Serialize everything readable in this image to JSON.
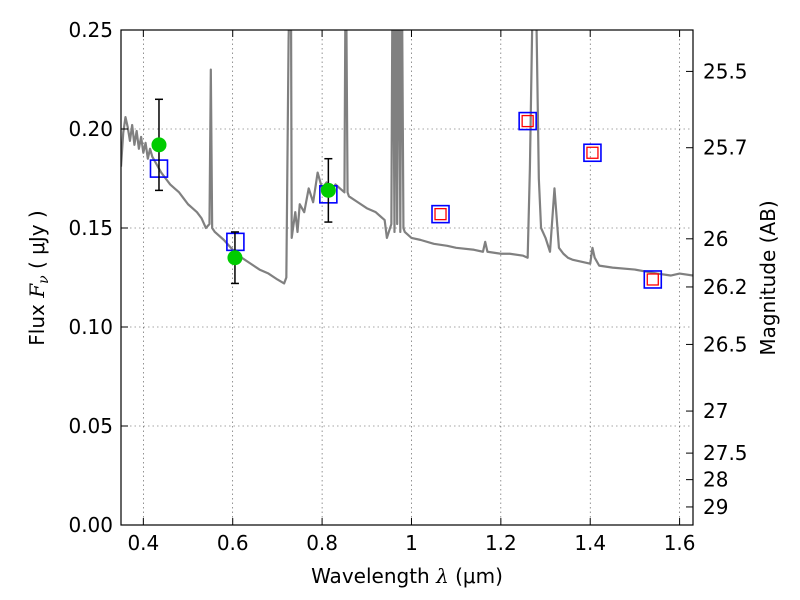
{
  "chart_data": {
    "type": "line",
    "xlabel": {
      "prefix": "Wavelength  ",
      "symbol": "λ",
      "unit": " (μm)"
    },
    "ylabel": {
      "prefix": "Flux  ",
      "symbol": "F",
      "sub": "ν",
      "unit": "  ( μJy )"
    },
    "y2label": "Magnitude (AB)",
    "xlim": [
      0.35,
      1.63
    ],
    "ylim": [
      0.0,
      0.25
    ],
    "xticks": [
      0.4,
      0.6,
      0.8,
      1.0,
      1.2,
      1.4,
      1.6
    ],
    "xtick_labels": [
      "0.4",
      "0.6",
      "0.8",
      "1",
      "1.2",
      "1.4",
      "1.6"
    ],
    "yticks": [
      0.0,
      0.05,
      0.1,
      0.15,
      0.2,
      0.25
    ],
    "ytick_labels": [
      "0.00",
      "0.05",
      "0.10",
      "0.15",
      "0.20",
      "0.25"
    ],
    "y2ticks": [
      {
        "mag": 25.5,
        "label": "25.5"
      },
      {
        "mag": 25.7,
        "label": "25.7"
      },
      {
        "mag": 26.0,
        "label": "26"
      },
      {
        "mag": 26.2,
        "label": "26.2"
      },
      {
        "mag": 26.5,
        "label": "26.5"
      },
      {
        "mag": 27.0,
        "label": "27"
      },
      {
        "mag": 27.5,
        "label": "27.5"
      },
      {
        "mag": 28.0,
        "label": "28"
      },
      {
        "mag": 29.0,
        "label": "29"
      }
    ],
    "grid": true,
    "colors": {
      "template": "#808080",
      "observed": "#00cc00",
      "model": "#0000ff",
      "model_inner": "#ff0000",
      "errorbar": "#000000"
    },
    "series": [
      {
        "name": "template spectrum",
        "kind": "line",
        "x": [
          0.35,
          0.355,
          0.36,
          0.365,
          0.37,
          0.375,
          0.38,
          0.385,
          0.39,
          0.395,
          0.4,
          0.405,
          0.41,
          0.415,
          0.42,
          0.43,
          0.44,
          0.45,
          0.46,
          0.47,
          0.48,
          0.49,
          0.5,
          0.51,
          0.52,
          0.53,
          0.54,
          0.548,
          0.551,
          0.554,
          0.56,
          0.58,
          0.6,
          0.62,
          0.64,
          0.66,
          0.68,
          0.7,
          0.715,
          0.72,
          0.725,
          0.73,
          0.732,
          0.735,
          0.74,
          0.745,
          0.75,
          0.76,
          0.77,
          0.78,
          0.79,
          0.8,
          0.81,
          0.82,
          0.83,
          0.84,
          0.85,
          0.853,
          0.857,
          0.86,
          0.88,
          0.9,
          0.92,
          0.94,
          0.945,
          0.955,
          0.958,
          0.962,
          0.965,
          0.968,
          0.972,
          0.975,
          0.978,
          0.982,
          0.985,
          0.99,
          1.0,
          1.02,
          1.05,
          1.08,
          1.1,
          1.14,
          1.16,
          1.165,
          1.17,
          1.2,
          1.22,
          1.25,
          1.26,
          1.265,
          1.27,
          1.275,
          1.28,
          1.285,
          1.29,
          1.3,
          1.31,
          1.32,
          1.33,
          1.34,
          1.35,
          1.36,
          1.38,
          1.4,
          1.405,
          1.41,
          1.42,
          1.45,
          1.5,
          1.55,
          1.58,
          1.6,
          1.63
        ],
        "y": [
          0.181,
          0.198,
          0.206,
          0.201,
          0.194,
          0.202,
          0.192,
          0.199,
          0.19,
          0.196,
          0.188,
          0.193,
          0.185,
          0.19,
          0.186,
          0.182,
          0.178,
          0.175,
          0.172,
          0.17,
          0.168,
          0.165,
          0.162,
          0.16,
          0.158,
          0.155,
          0.15,
          0.152,
          0.23,
          0.15,
          0.148,
          0.144,
          0.139,
          0.135,
          0.132,
          0.129,
          0.127,
          0.124,
          0.122,
          0.125,
          0.245,
          0.3,
          0.145,
          0.15,
          0.158,
          0.148,
          0.162,
          0.158,
          0.17,
          0.163,
          0.178,
          0.17,
          0.173,
          0.168,
          0.172,
          0.17,
          0.168,
          0.3,
          0.168,
          0.166,
          0.163,
          0.16,
          0.158,
          0.154,
          0.145,
          0.152,
          0.3,
          0.148,
          0.3,
          0.152,
          0.3,
          0.148,
          0.3,
          0.15,
          0.148,
          0.147,
          0.145,
          0.144,
          0.142,
          0.141,
          0.14,
          0.139,
          0.138,
          0.143,
          0.138,
          0.137,
          0.137,
          0.136,
          0.135,
          0.18,
          0.25,
          0.3,
          0.25,
          0.175,
          0.15,
          0.145,
          0.138,
          0.17,
          0.14,
          0.137,
          0.135,
          0.134,
          0.133,
          0.132,
          0.14,
          0.135,
          0.131,
          0.13,
          0.129,
          0.127,
          0.126,
          0.127,
          0.126
        ]
      },
      {
        "name": "observed photometry",
        "kind": "points-errorbar",
        "x": [
          0.435,
          0.605,
          0.814
        ],
        "y": [
          0.192,
          0.135,
          0.169
        ],
        "yerr": [
          0.023,
          0.013,
          0.016
        ]
      },
      {
        "name": "model photometry",
        "kind": "open-squares",
        "x": [
          0.435,
          0.606,
          0.814,
          1.065,
          1.26,
          1.405,
          1.54
        ],
        "y": [
          0.18,
          0.143,
          0.167,
          0.157,
          0.204,
          0.188,
          0.124
        ],
        "inner_red": [
          false,
          false,
          false,
          true,
          true,
          true,
          true
        ]
      }
    ]
  }
}
